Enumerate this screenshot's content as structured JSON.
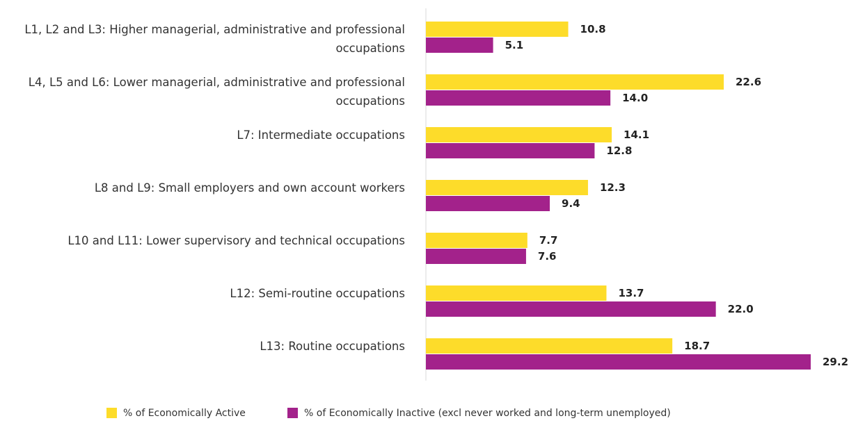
{
  "chart_data": {
    "type": "bar",
    "orientation": "horizontal",
    "categories": [
      "L1, L2 and L3: Higher managerial, administrative and professional occupations",
      "L4, L5 and L6: Lower managerial, administrative and professional occupations",
      "L7: Intermediate occupations",
      "L8 and L9: Small employers and own account workers",
      "L10 and L11: Lower supervisory and technical occupations",
      "L12: Semi-routine occupations",
      "L13: Routine occupations"
    ],
    "series": [
      {
        "name": "% of Economically Active",
        "color": "#fddc2a",
        "values": [
          10.8,
          22.6,
          14.1,
          12.3,
          7.7,
          13.7,
          18.7
        ],
        "value_labels": [
          "10.8",
          "22.6",
          "14.1",
          "12.3",
          "7.7",
          "13.7",
          "18.7"
        ]
      },
      {
        "name": "% of Economically Inactive (excl never worked and long-term unemployed)",
        "color": "#a3228b",
        "values": [
          5.1,
          14.0,
          12.8,
          9.4,
          7.6,
          22.0,
          29.2
        ],
        "value_labels": [
          "5.1",
          "14.0",
          "12.8",
          "9.4",
          "7.6",
          "22.0",
          "29.2"
        ]
      }
    ],
    "legend": "bottom"
  }
}
